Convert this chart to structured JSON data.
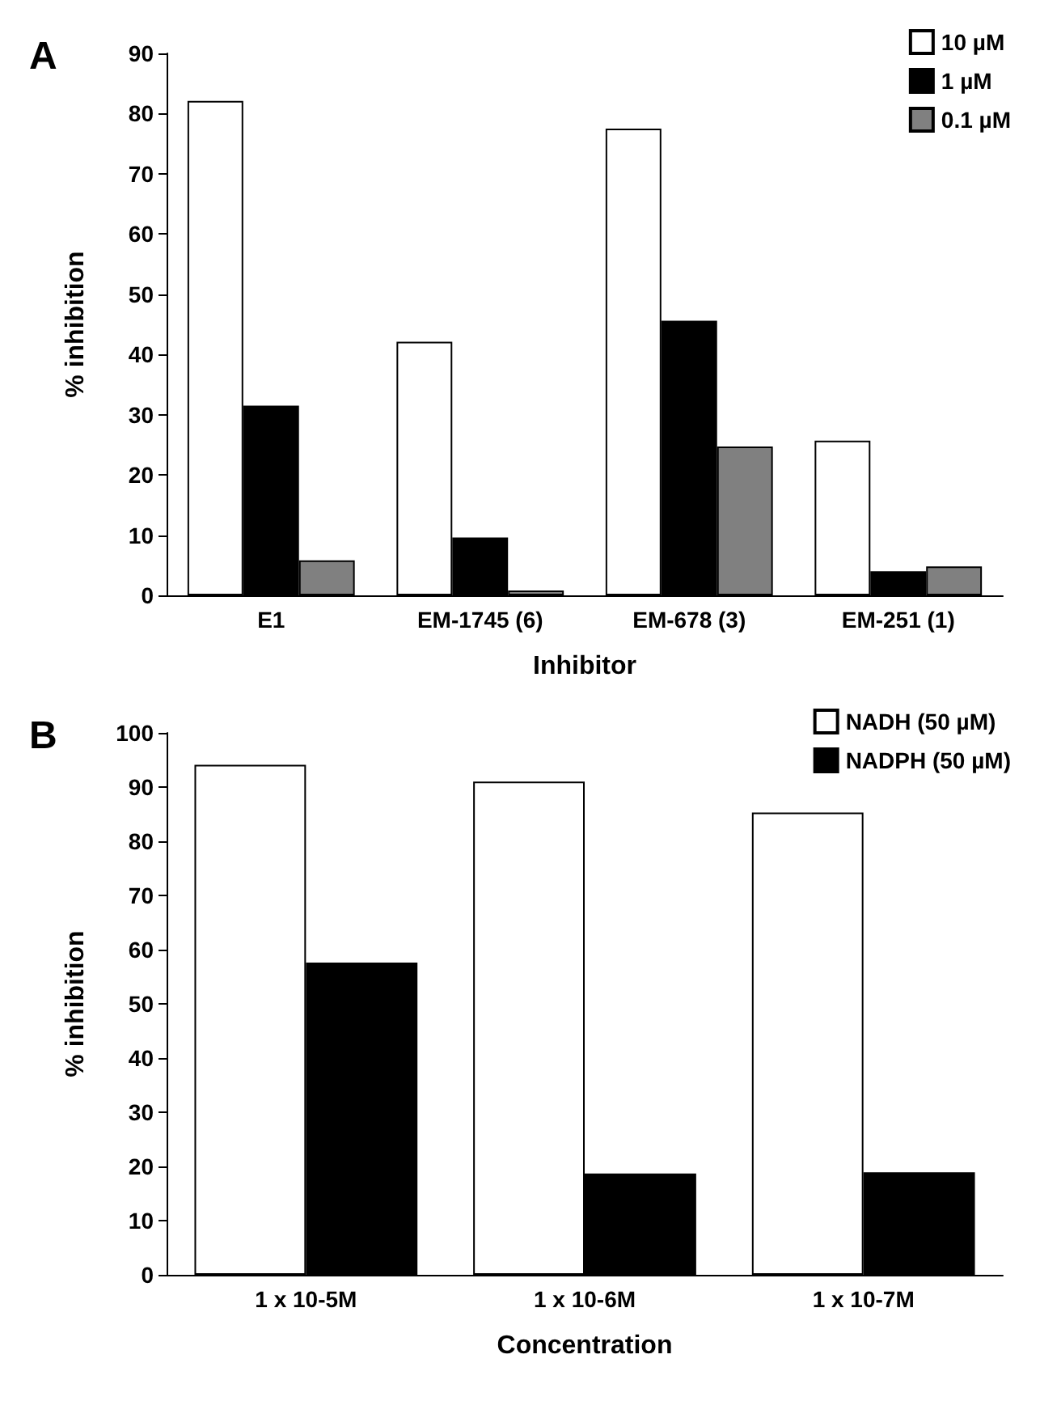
{
  "chart_data": [
    {
      "type": "bar",
      "title": "A",
      "xlabel": "Inhibitor",
      "ylabel": "% inhibition",
      "categories": [
        "E1",
        "EM-1745 (6)",
        "EM-678 (3)",
        "EM-251 (1)"
      ],
      "series": [
        {
          "name": "10 µM",
          "color": "#ffffff",
          "values": [
            82.1,
            42.1,
            77.5,
            25.7
          ]
        },
        {
          "name": "1 µM",
          "color": "#000000",
          "values": [
            31.5,
            9.6,
            45.6,
            4.0
          ]
        },
        {
          "name": "0.1 µM",
          "color": "#808080",
          "values": [
            5.8,
            0.8,
            24.7,
            4.8
          ]
        }
      ],
      "ylim": [
        0,
        90
      ],
      "yticks": [
        0,
        10,
        20,
        30,
        40,
        50,
        60,
        70,
        80,
        90
      ],
      "grid": false,
      "legend": "top right"
    },
    {
      "type": "bar",
      "title": "B",
      "xlabel": "Concentration",
      "ylabel": "% inhibition",
      "categories": [
        "1 x 10-5M",
        "1 x 10-6M",
        "1 x 10-7M"
      ],
      "series": [
        {
          "name": "NADH (50 µM)",
          "color": "#ffffff",
          "values": [
            94.1,
            91.0,
            85.3
          ]
        },
        {
          "name": "NADPH (50 µM)",
          "color": "#000000",
          "values": [
            57.6,
            18.7,
            18.9
          ]
        }
      ],
      "ylim": [
        0,
        100
      ],
      "yticks": [
        0,
        10,
        20,
        30,
        40,
        50,
        60,
        70,
        80,
        90,
        100
      ],
      "grid": false,
      "legend": "top right"
    }
  ]
}
